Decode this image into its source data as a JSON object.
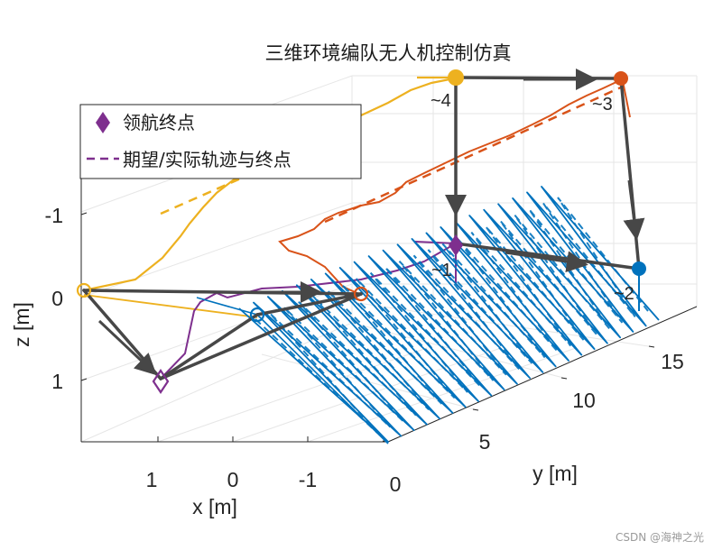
{
  "title": "三维环境编队无人机控制仿真",
  "watermark": "CSDN @海神之光",
  "chart_data": {
    "type": "line",
    "title": "三维环境编队无人机控制仿真",
    "xlabel": "x [m]",
    "ylabel": "y [m]",
    "zlabel": "z [m]",
    "x_ticks": [
      "1",
      "0",
      "-1"
    ],
    "y_ticks": [
      "0",
      "5",
      "10",
      "15"
    ],
    "z_ticks": [
      "-1",
      "0",
      "1"
    ],
    "z_reversed": true,
    "legend": [
      {
        "label": "领航终点",
        "marker": "diamond",
        "color": "#7e2f8e"
      },
      {
        "label": "期望/实际轨迹与终点",
        "marker": "dashed-line",
        "color": "#7e2f8e"
      }
    ],
    "agent_labels": [
      "~1",
      "~2",
      "~3",
      "~4"
    ],
    "colors": {
      "leader": "#7e2f8e",
      "agent1": "#0072bd",
      "agent2": "#d95319",
      "agent3": "#edb120",
      "formation": "#474747",
      "grid": "#e6e6e6",
      "axis": "#262626"
    },
    "grid": true
  }
}
